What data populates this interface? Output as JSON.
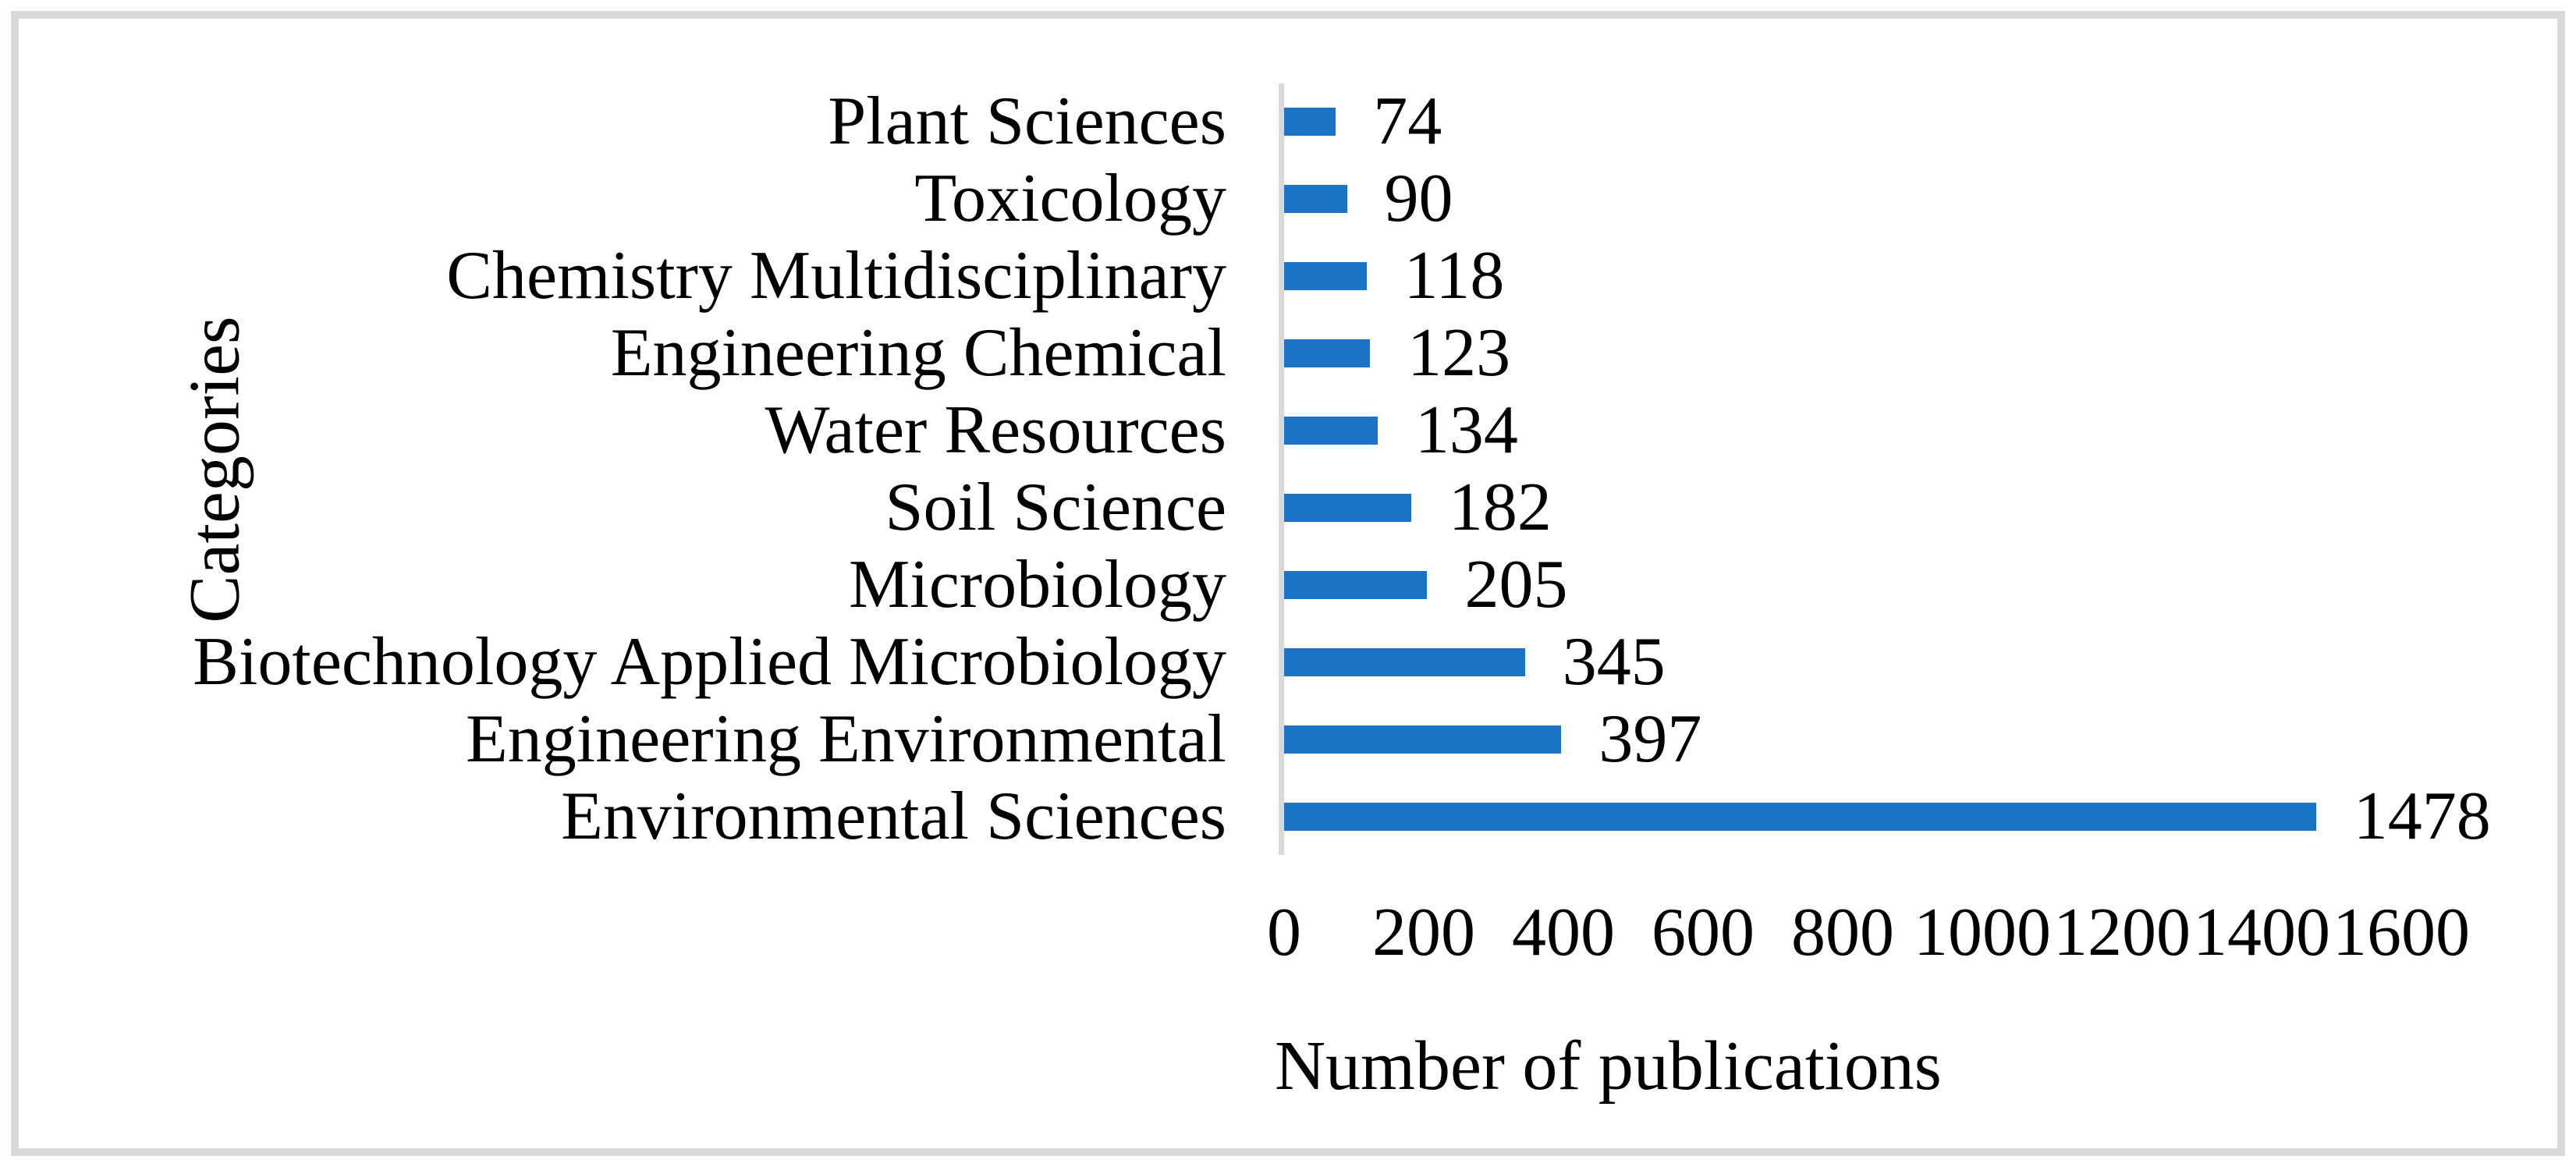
{
  "figure": {
    "background": "#ffffff",
    "frame_border_color": "#d9d9d9"
  },
  "chart_data": {
    "type": "bar",
    "orientation": "horizontal",
    "title": "",
    "categories": [
      "Plant Sciences",
      "Toxicology",
      "Chemistry Multidisciplinary",
      "Engineering Chemical",
      "Water Resources",
      "Soil Science",
      "Microbiology",
      "Biotechnology Applied Microbiology",
      "Engineering Environmental",
      "Environmental Sciences"
    ],
    "values": [
      74,
      90,
      118,
      123,
      134,
      182,
      205,
      345,
      397,
      1478
    ],
    "xlabel": "Number of publications",
    "ylabel": "Categories",
    "xlim": [
      0,
      1600
    ],
    "x_ticks": [
      0,
      200,
      400,
      600,
      800,
      1000,
      1200,
      1400,
      1600
    ],
    "bar_color": "#1b74c5",
    "axis_line_color": "#d9d9d9",
    "data_labels": true,
    "grid": false,
    "legend": "none"
  }
}
